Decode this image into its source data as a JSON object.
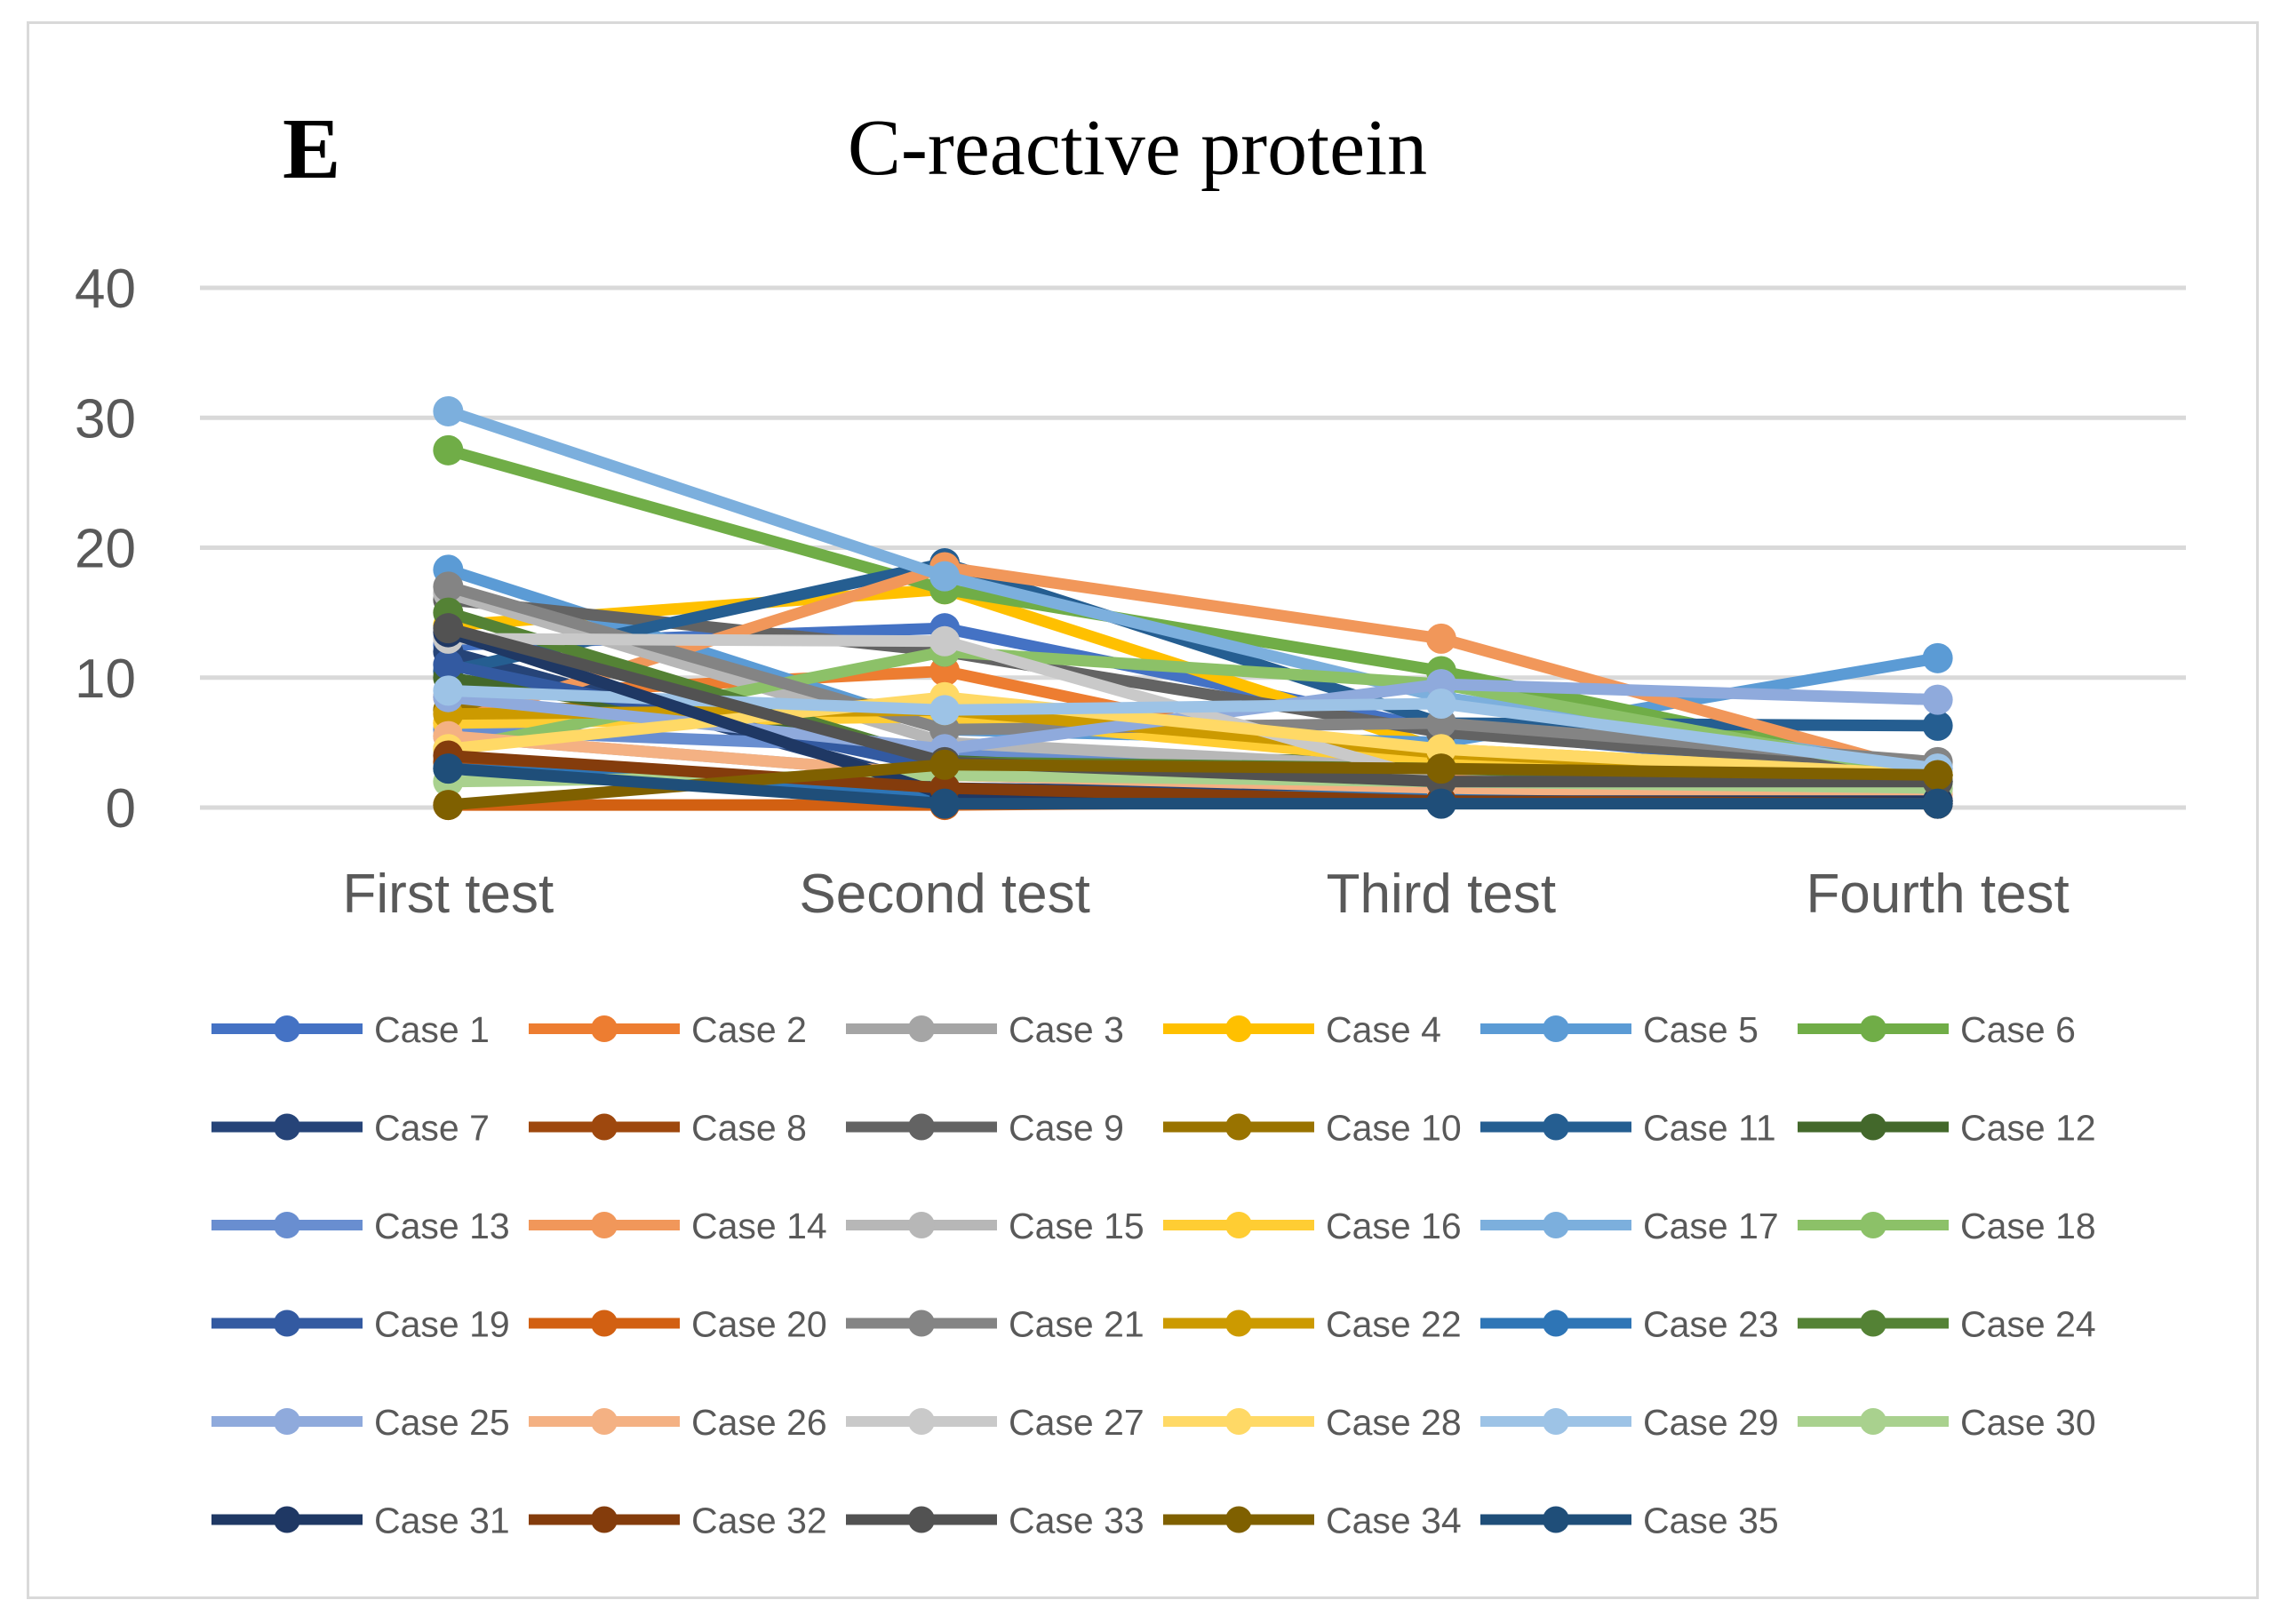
{
  "panel_letter": "E",
  "chart_data": {
    "type": "line",
    "title": "C-reactive protein",
    "xlabel": "",
    "ylabel": "",
    "categories": [
      "First test",
      "Second test",
      "Third test",
      "Fourth test"
    ],
    "ylim": [
      0,
      40
    ],
    "yticks": [
      0,
      10,
      20,
      30,
      40
    ],
    "grid": true,
    "legend_position": "bottom",
    "series": [
      {
        "name": "Case 1",
        "color": "#4472c4",
        "values": [
          12.5,
          13.8,
          6.0,
          2.5
        ]
      },
      {
        "name": "Case 2",
        "color": "#ed7d31",
        "values": [
          8.5,
          10.5,
          2.5,
          2.0
        ]
      },
      {
        "name": "Case 3",
        "color": "#a5a5a5",
        "values": [
          5.5,
          2.5,
          1.5,
          1.0
        ]
      },
      {
        "name": "Case 4",
        "color": "#ffc000",
        "values": [
          14.0,
          16.8,
          4.5,
          2.5
        ]
      },
      {
        "name": "Case 5",
        "color": "#5b9bd5",
        "values": [
          18.3,
          6.0,
          5.0,
          11.5
        ]
      },
      {
        "name": "Case 6",
        "color": "#70ad47",
        "values": [
          27.5,
          16.8,
          10.5,
          2.5
        ]
      },
      {
        "name": "Case 7",
        "color": "#264478",
        "values": [
          12.0,
          1.5,
          1.0,
          0.5
        ]
      },
      {
        "name": "Case 8",
        "color": "#9e480e",
        "values": [
          3.5,
          1.0,
          0.5,
          0.3
        ]
      },
      {
        "name": "Case 9",
        "color": "#636363",
        "values": [
          16.0,
          12.0,
          5.8,
          3.0
        ]
      },
      {
        "name": "Case 10",
        "color": "#997300",
        "values": [
          7.5,
          8.0,
          4.0,
          2.5
        ]
      },
      {
        "name": "Case 11",
        "color": "#255e91",
        "values": [
          10.5,
          18.8,
          6.5,
          6.3
        ]
      },
      {
        "name": "Case 12",
        "color": "#43682b",
        "values": [
          10.0,
          4.0,
          3.5,
          2.5
        ]
      },
      {
        "name": "Case 13",
        "color": "#698ed0",
        "values": [
          6.0,
          4.5,
          3.0,
          2.0
        ]
      },
      {
        "name": "Case 14",
        "color": "#f1975a",
        "values": [
          6.5,
          18.5,
          13.0,
          2.5
        ]
      },
      {
        "name": "Case 15",
        "color": "#b7b7b7",
        "values": [
          16.5,
          5.0,
          3.0,
          1.5
        ]
      },
      {
        "name": "Case 16",
        "color": "#ffcd33",
        "values": [
          6.5,
          7.0,
          3.5,
          2.5
        ]
      },
      {
        "name": "Case 17",
        "color": "#7cafdd",
        "values": [
          30.5,
          17.8,
          8.5,
          3.0
        ]
      },
      {
        "name": "Case 18",
        "color": "#8cc168",
        "values": [
          4.5,
          12.0,
          9.5,
          2.5
        ]
      },
      {
        "name": "Case 19",
        "color": "#335aa1",
        "values": [
          11.0,
          3.0,
          1.5,
          0.5
        ]
      },
      {
        "name": "Case 20",
        "color": "#d26012",
        "values": [
          0.2,
          0.2,
          0.5,
          0.5
        ]
      },
      {
        "name": "Case 21",
        "color": "#848484",
        "values": [
          17.0,
          6.0,
          6.5,
          3.5
        ]
      },
      {
        "name": "Case 22",
        "color": "#cc9a00",
        "values": [
          7.2,
          7.5,
          4.2,
          2.5
        ]
      },
      {
        "name": "Case 23",
        "color": "#2e75b6",
        "values": [
          3.0,
          1.0,
          0.8,
          0.5
        ]
      },
      {
        "name": "Case 24",
        "color": "#548235",
        "values": [
          15.0,
          3.5,
          3.0,
          2.0
        ]
      },
      {
        "name": "Case 25",
        "color": "#8faadc",
        "values": [
          8.5,
          4.5,
          9.5,
          8.3
        ]
      },
      {
        "name": "Case 26",
        "color": "#f4b183",
        "values": [
          5.5,
          2.5,
          1.5,
          1.0
        ]
      },
      {
        "name": "Case 27",
        "color": "#c9c9c9",
        "values": [
          13.0,
          12.8,
          2.0,
          1.5
        ]
      },
      {
        "name": "Case 28",
        "color": "#ffd966",
        "values": [
          4.5,
          8.5,
          4.5,
          2.5
        ]
      },
      {
        "name": "Case 29",
        "color": "#9dc3e6",
        "values": [
          9.0,
          7.5,
          8.0,
          3.0
        ]
      },
      {
        "name": "Case 30",
        "color": "#a9d18e",
        "values": [
          2.0,
          2.5,
          2.0,
          1.5
        ]
      },
      {
        "name": "Case 31",
        "color": "#1f3864",
        "values": [
          13.5,
          1.0,
          0.5,
          0.5
        ]
      },
      {
        "name": "Case 32",
        "color": "#843c0c",
        "values": [
          4.0,
          1.5,
          0.5,
          0.3
        ]
      },
      {
        "name": "Case 33",
        "color": "#525252",
        "values": [
          13.8,
          3.5,
          2.0,
          2.0
        ]
      },
      {
        "name": "Case 34",
        "color": "#7f6000",
        "values": [
          0.2,
          3.3,
          3.0,
          2.5
        ]
      },
      {
        "name": "Case 35",
        "color": "#1f4e79",
        "values": [
          3.0,
          0.3,
          0.3,
          0.3
        ]
      }
    ]
  }
}
